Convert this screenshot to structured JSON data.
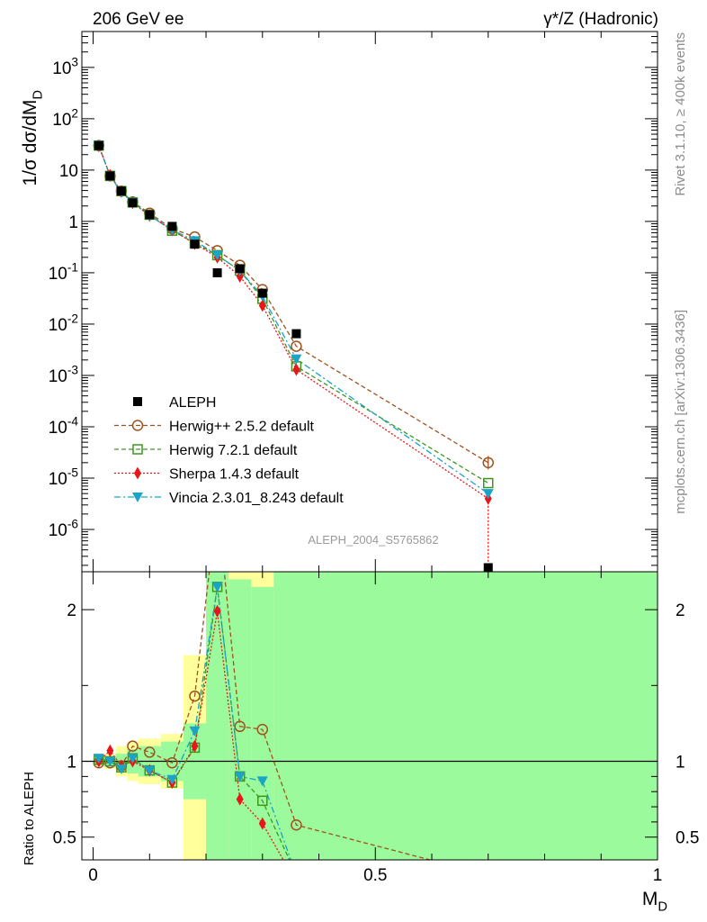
{
  "header": {
    "left": "206 GeV ee",
    "right": "γ*/Z (Hadronic)"
  },
  "side_labels": {
    "rivet": "Rivet 3.1.10, ≥ 400k events",
    "mcplots": "mcplots.cern.ch [arXiv:1306.3436]"
  },
  "analysis_id": "ALEPH_2004_S5765862",
  "top_panel": {
    "ylabel": "1/σ  dσ/dM_D",
    "scale": "log",
    "ylim": [
      1.5e-07,
      5000
    ],
    "yticks": [
      {
        "value": 1000.0,
        "label": "10^3"
      },
      {
        "value": 100.0,
        "label": "10^2"
      },
      {
        "value": 10,
        "label": "10"
      },
      {
        "value": 1,
        "label": "1"
      },
      {
        "value": 0.1,
        "label": "10^-1"
      },
      {
        "value": 0.01,
        "label": "10^-2"
      },
      {
        "value": 0.001,
        "label": "10^-3"
      },
      {
        "value": 0.0001,
        "label": "10^-4"
      },
      {
        "value": 1e-05,
        "label": "10^-5"
      },
      {
        "value": 1e-06,
        "label": "10^-6"
      }
    ]
  },
  "bottom_panel": {
    "ylabel": "Ratio to ALEPH",
    "ylim": [
      0.35,
      2.25
    ],
    "yticks": [
      {
        "value": 0.5,
        "label": "0.5"
      },
      {
        "value": 1,
        "label": "1"
      },
      {
        "value": 2,
        "label": "2"
      }
    ]
  },
  "xaxis": {
    "label": "M_D",
    "xlim": [
      -0.02,
      1.0
    ],
    "ticks": [
      {
        "value": 0,
        "label": "0"
      },
      {
        "value": 0.5,
        "label": "0.5"
      },
      {
        "value": 1,
        "label": "1"
      }
    ]
  },
  "legend": {
    "position": "center-left",
    "entries": [
      {
        "key": "aleph",
        "label": "ALEPH"
      },
      {
        "key": "herwigpp",
        "label": "Herwig++ 2.5.2 default"
      },
      {
        "key": "herwig7",
        "label": "Herwig 7.2.1 default"
      },
      {
        "key": "sherpa",
        "label": "Sherpa 1.4.3 default"
      },
      {
        "key": "vincia",
        "label": "Vincia 2.3.01_8.243 default"
      }
    ]
  },
  "colors": {
    "aleph": "#000000",
    "herwigpp": "#a0521e",
    "herwig7": "#3f9621",
    "sherpa": "#e8161a",
    "vincia": "#1ba3c8",
    "band_inner": "#9bfa9b",
    "band_outer": "#ffff9b"
  },
  "chart_data": {
    "type": "scatter",
    "x": [
      0.01,
      0.03,
      0.05,
      0.07,
      0.1,
      0.14,
      0.18,
      0.22,
      0.26,
      0.3,
      0.36,
      0.7
    ],
    "series": [
      {
        "key": "aleph",
        "name": "ALEPH",
        "values": [
          30,
          7.7,
          3.9,
          2.3,
          1.35,
          0.8,
          0.36,
          0.1,
          0.12,
          0.04,
          0.0065,
          1.8e-07
        ]
      },
      {
        "key": "herwigpp",
        "name": "Herwig++ 2.5.2 default",
        "values": [
          30,
          7.7,
          3.9,
          2.4,
          1.45,
          0.72,
          0.5,
          0.27,
          0.14,
          0.047,
          0.0037,
          2e-05
        ]
      },
      {
        "key": "herwig7",
        "name": "Herwig 7.2.1 default",
        "values": [
          30,
          7.7,
          3.9,
          2.35,
          1.35,
          0.66,
          0.38,
          0.22,
          0.11,
          0.031,
          0.0015,
          8e-06
        ]
      },
      {
        "key": "sherpa",
        "name": "Sherpa 1.4.3 default",
        "values": [
          29.5,
          7.9,
          3.8,
          2.3,
          1.3,
          0.68,
          0.37,
          0.2,
          0.085,
          0.023,
          0.0013,
          4e-06
        ]
      },
      {
        "key": "vincia",
        "name": "Vincia 2.3.01_8.243 default",
        "values": [
          30,
          7.7,
          3.7,
          2.35,
          1.3,
          0.68,
          0.42,
          0.22,
          0.11,
          0.035,
          0.0021,
          5e-06
        ]
      }
    ],
    "ratio": {
      "series": [
        {
          "key": "herwigpp",
          "values": [
            0.99,
            0.99,
            0.97,
            1.1,
            1.06,
            0.99,
            1.43,
            2.7,
            1.23,
            1.21,
            0.58,
            0.25
          ]
        },
        {
          "key": "herwig7",
          "values": [
            1.01,
            1.0,
            0.96,
            1.02,
            0.94,
            0.86,
            1.09,
            2.15,
            0.9,
            0.74,
            0.25,
            0.25
          ]
        },
        {
          "key": "sherpa",
          "values": [
            1.0,
            1.07,
            0.97,
            1.0,
            0.94,
            0.86,
            1.1,
            1.99,
            0.75,
            0.59,
            0.2,
            0.2
          ]
        },
        {
          "key": "vincia",
          "values": [
            1.02,
            1.0,
            0.95,
            1.02,
            0.94,
            0.88,
            1.2,
            2.15,
            0.9,
            0.87,
            0.25,
            0.25
          ]
        }
      ],
      "bands": [
        {
          "xlo": 0.0,
          "xhi": 0.02,
          "inner": [
            0.985,
            1.015
          ],
          "outer": [
            0.97,
            1.03
          ]
        },
        {
          "xlo": 0.02,
          "xhi": 0.04,
          "inner": [
            0.97,
            1.03
          ],
          "outer": [
            0.95,
            1.05
          ]
        },
        {
          "xlo": 0.04,
          "xhi": 0.06,
          "inner": [
            0.95,
            1.05
          ],
          "outer": [
            0.9,
            1.1
          ]
        },
        {
          "xlo": 0.06,
          "xhi": 0.08,
          "inner": [
            0.92,
            1.08
          ],
          "outer": [
            0.87,
            1.13
          ]
        },
        {
          "xlo": 0.08,
          "xhi": 0.12,
          "inner": [
            0.9,
            1.1
          ],
          "outer": [
            0.85,
            1.15
          ]
        },
        {
          "xlo": 0.12,
          "xhi": 0.16,
          "inner": [
            0.87,
            1.13
          ],
          "outer": [
            0.82,
            1.18
          ]
        },
        {
          "xlo": 0.16,
          "xhi": 0.2,
          "inner": [
            0.75,
            1.25
          ],
          "outer": [
            0.3,
            1.7
          ]
        },
        {
          "xlo": 0.2,
          "xhi": 0.24,
          "inner": [
            0.3,
            2.3
          ],
          "outer": [
            0.2,
            2.5
          ]
        },
        {
          "xlo": 0.24,
          "xhi": 0.28,
          "inner": [
            0.3,
            2.2
          ],
          "outer": [
            0.2,
            2.5
          ]
        },
        {
          "xlo": 0.28,
          "xhi": 0.32,
          "inner": [
            0.2,
            2.15
          ],
          "outer": [
            0.2,
            2.4
          ]
        },
        {
          "xlo": 0.32,
          "xhi": 1.0,
          "inner": [
            0.2,
            2.5
          ],
          "outer": [
            0.2,
            2.5
          ]
        }
      ]
    }
  }
}
